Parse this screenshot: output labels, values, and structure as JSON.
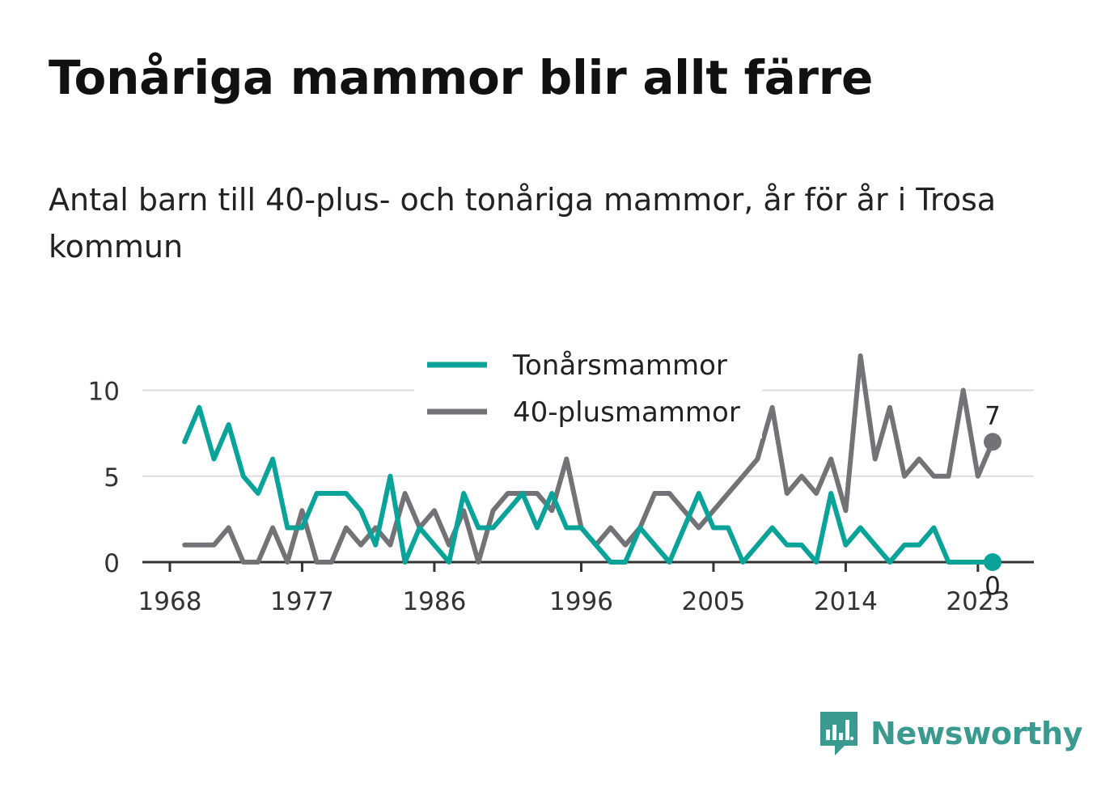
{
  "title": "Tonåriga mammor blir allt färre",
  "subtitle": "Antal barn till 40-plus- och tonåriga mammor, år för år i Trosa kommun",
  "brand": {
    "name": "Newsworthy",
    "icon": "newsworthy-logo-icon"
  },
  "chart_data": {
    "type": "line",
    "title": "Tonåriga mammor blir allt färre",
    "xlim": [
      1968,
      2024
    ],
    "ylim": [
      0,
      12
    ],
    "x_ticks": [
      1968,
      1977,
      1986,
      1996,
      2005,
      2014,
      2023
    ],
    "y_ticks": [
      0,
      5,
      10
    ],
    "grid": "horizontal",
    "legend_position": "top",
    "x": [
      1969,
      1970,
      1971,
      1972,
      1973,
      1974,
      1975,
      1976,
      1977,
      1978,
      1979,
      1980,
      1981,
      1982,
      1983,
      1984,
      1985,
      1986,
      1987,
      1988,
      1989,
      1990,
      1991,
      1992,
      1993,
      1994,
      1995,
      1996,
      1997,
      1998,
      1999,
      2000,
      2001,
      2002,
      2003,
      2004,
      2005,
      2006,
      2007,
      2008,
      2009,
      2010,
      2011,
      2012,
      2013,
      2014,
      2015,
      2016,
      2017,
      2018,
      2019,
      2020,
      2021,
      2022,
      2023,
      2024
    ],
    "series": [
      {
        "name": "Tonårsmammor",
        "color": "#0aa39a",
        "values": [
          7,
          9,
          6,
          8,
          5,
          4,
          6,
          2,
          2,
          4,
          4,
          4,
          3,
          1,
          5,
          0,
          2,
          1,
          0,
          4,
          2,
          2,
          3,
          4,
          2,
          4,
          2,
          2,
          1,
          0,
          0,
          2,
          1,
          0,
          2,
          4,
          2,
          2,
          0,
          1,
          2,
          1,
          1,
          0,
          4,
          1,
          2,
          1,
          0,
          1,
          1,
          2,
          0,
          0,
          0,
          0
        ],
        "end_label": "0"
      },
      {
        "name": "40-plusmammor",
        "color": "#737277",
        "values": [
          1,
          1,
          1,
          2,
          0,
          0,
          2,
          0,
          3,
          0,
          0,
          2,
          1,
          2,
          1,
          4,
          2,
          3,
          1,
          3,
          0,
          3,
          4,
          4,
          4,
          3,
          6,
          2,
          1,
          2,
          1,
          2,
          4,
          4,
          3,
          2,
          3,
          4,
          5,
          6,
          9,
          4,
          5,
          4,
          6,
          3,
          12,
          6,
          9,
          5,
          6,
          5,
          5,
          10,
          5,
          7
        ],
        "end_label": "7"
      }
    ]
  }
}
